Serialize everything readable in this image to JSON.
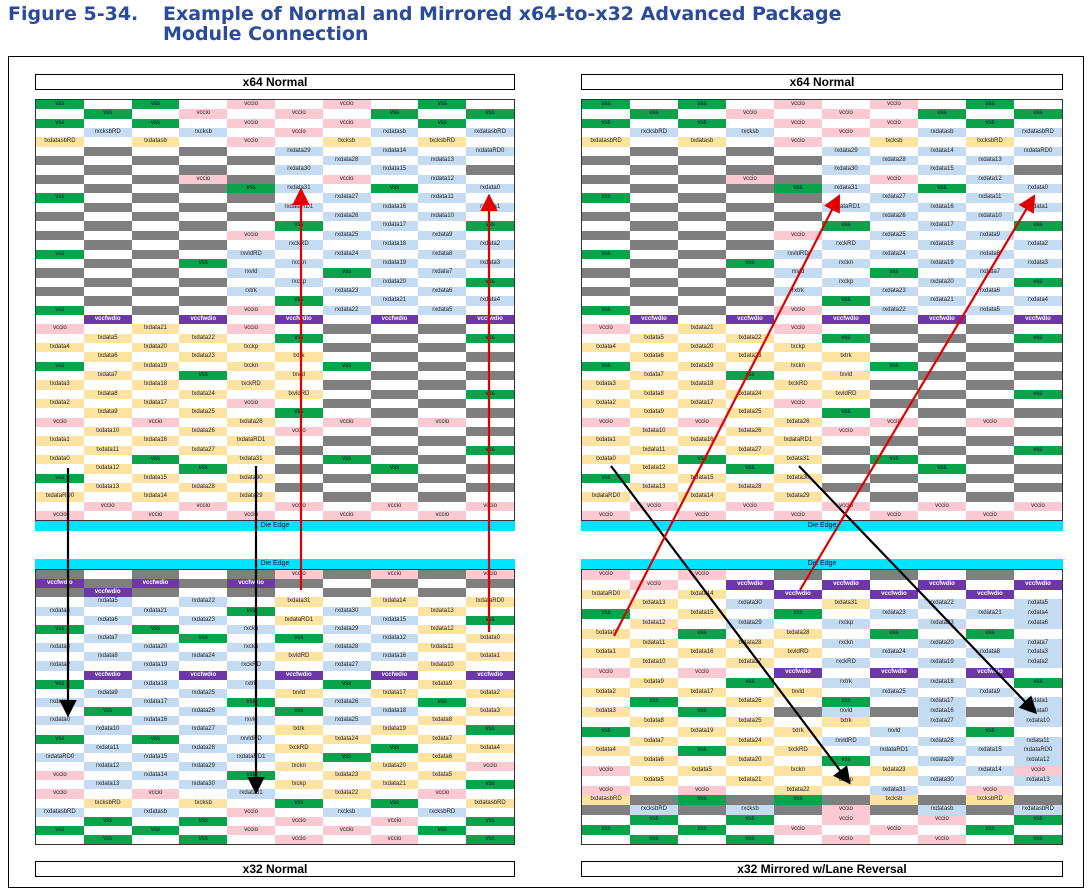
{
  "figure": {
    "number": "Figure 5-34.",
    "title": "Example of Normal and Mirrored x64-to-x32 Advanced Package Module Connection"
  },
  "labels": {
    "top_left": "x64 Normal",
    "top_right": "x64 Normal",
    "bottom_left": "x32 Normal",
    "bottom_right": "x32 Mirrored w/Lane Reversal",
    "die_edge": "Die Edge"
  },
  "colors": {
    "vss": "#0aa24a",
    "vccio": "#fbc9d1",
    "rx": "#c5dbf1",
    "tx": "#fce3a2",
    "unused": "#7f7f7f",
    "vccfwdio": "#6c37a8",
    "die_edge": "#00e5ff",
    "arrow_normal": "#e00000",
    "arrow_mirrored": "#000000"
  },
  "x64_grid": [
    [
      "vss",
      "",
      "vss",
      "",
      "vccio",
      "",
      "vccio",
      "",
      "vss",
      ""
    ],
    [
      "",
      "vss",
      "",
      "vccio",
      "",
      "vccio",
      "",
      "vss",
      "",
      "vss"
    ],
    [
      "vss",
      "",
      "vss",
      "",
      "vccio",
      "",
      "vccio",
      "",
      "vss",
      ""
    ],
    [
      "",
      "rxcksbRD",
      "",
      "rxcksb",
      "",
      "vccio",
      "",
      "rxdatasb",
      "",
      "rxdatasbRD"
    ],
    [
      "txdatasbRD",
      "",
      "txdatasb",
      "",
      "vccio",
      "",
      "txcksb",
      "",
      "txcksbRD",
      ""
    ],
    [
      "",
      "",
      "",
      "",
      "",
      "rxdata29",
      "",
      "rxdata14",
      "",
      "rxdataRD0"
    ],
    [
      "",
      "",
      "",
      "",
      "",
      "",
      "rxdata28",
      "",
      "rxdata13",
      ""
    ],
    [
      "",
      "",
      "",
      "",
      "",
      "rxdata30",
      "",
      "rxdata15",
      "",
      ""
    ],
    [
      "",
      "",
      "",
      "vccio",
      "",
      "",
      "vccio",
      "",
      "rxdata12",
      ""
    ],
    [
      "",
      "",
      "",
      "",
      "vss",
      "rxdata31",
      "",
      "vss",
      "",
      "rxdata0"
    ],
    [
      "vss",
      "",
      "",
      "",
      "",
      "",
      "rxdata27",
      "",
      "rxdata11",
      ""
    ],
    [
      "",
      "",
      "",
      "",
      "",
      "rxdataRD1",
      "",
      "rxdata16",
      "",
      "rxdata1"
    ],
    [
      "",
      "",
      "",
      "",
      "",
      "",
      "rxdata26",
      "",
      "rxdata10",
      ""
    ],
    [
      "",
      "",
      "",
      "",
      "",
      "vss",
      "",
      "rxdata17",
      "",
      "vss"
    ],
    [
      "",
      "",
      "",
      "",
      "vccio",
      "",
      "rxdata25",
      "",
      "rxdata9",
      ""
    ],
    [
      "",
      "",
      "",
      "",
      "",
      "rxckRD",
      "",
      "rxdata18",
      "",
      "rxdata2"
    ],
    [
      "vss",
      "",
      "",
      "",
      "rxvldRD",
      "",
      "rxdata24",
      "",
      "rxdata8",
      ""
    ],
    [
      "",
      "",
      "",
      "vss",
      "",
      "rxckn",
      "",
      "rxdata19",
      "",
      "rxdata3"
    ],
    [
      "",
      "",
      "",
      "",
      "rxvld",
      "",
      "vss",
      "",
      "rxdata7",
      ""
    ],
    [
      "",
      "",
      "",
      "",
      "",
      "rxckp",
      "",
      "rxdata20",
      "",
      "vss"
    ],
    [
      "",
      "",
      "",
      "",
      "rxtrk",
      "",
      "rxdata23",
      "",
      "rxdata6",
      ""
    ],
    [
      "",
      "",
      "",
      "",
      "",
      "vss",
      "",
      "rxdata21",
      "",
      "rxdata4"
    ],
    [
      "vss",
      "",
      "",
      "",
      "vccio",
      "",
      "rxdata22",
      "",
      "rxdata5",
      ""
    ],
    [
      "",
      "vccfwdio",
      "",
      "vccfwdio",
      "",
      "vccfwdio",
      "",
      "vccfwdio",
      "",
      "vccfwdio"
    ],
    [
      "vccio",
      "",
      "txdata21",
      "",
      "vccio",
      "",
      "",
      "",
      "",
      ""
    ],
    [
      "",
      "txdata5",
      "",
      "txdata22",
      "",
      "vss",
      "",
      "",
      "",
      "vss"
    ],
    [
      "txdata4",
      "",
      "txdata20",
      "",
      "txckp",
      "",
      "",
      "",
      "",
      ""
    ],
    [
      "",
      "txdata6",
      "",
      "txdata23",
      "",
      "txtrk",
      "",
      "",
      "",
      ""
    ],
    [
      "vss",
      "",
      "txdata19",
      "",
      "txckn",
      "",
      "vss",
      "",
      "",
      ""
    ],
    [
      "",
      "txdata7",
      "",
      "vss",
      "",
      "txvld",
      "",
      "",
      "",
      ""
    ],
    [
      "txdata3",
      "",
      "txdata18",
      "",
      "txckRD",
      "",
      "",
      "",
      "",
      ""
    ],
    [
      "",
      "txdata8",
      "",
      "txdata24",
      "",
      "txvldRD",
      "",
      "",
      "",
      "vss"
    ],
    [
      "txdata2",
      "",
      "txdata17",
      "",
      "vccio",
      "",
      "",
      "",
      "",
      ""
    ],
    [
      "",
      "txdata9",
      "",
      "txdata25",
      "",
      "vss",
      "",
      "",
      "",
      ""
    ],
    [
      "vccio",
      "",
      "vccio",
      "",
      "txdata26",
      "",
      "vccio",
      "",
      "vccio",
      ""
    ],
    [
      "",
      "txdata10",
      "",
      "txdata26",
      "",
      "vccio",
      "",
      "",
      "",
      ""
    ],
    [
      "txdata1",
      "",
      "txdata16",
      "",
      "txdataRD1",
      "",
      "",
      "",
      "",
      ""
    ],
    [
      "",
      "txdata11",
      "",
      "txdata27",
      "",
      "",
      "",
      "",
      "",
      "vss"
    ],
    [
      "txdata0",
      "",
      "vss",
      "",
      "txdata31",
      "",
      "vss",
      "",
      "",
      ""
    ],
    [
      "",
      "txdata12",
      "",
      "vss",
      "",
      "",
      "",
      "vss",
      "",
      ""
    ],
    [
      "vss",
      "",
      "txdata15",
      "",
      "txdata30",
      "",
      "",
      "",
      "",
      ""
    ],
    [
      "",
      "txdata13",
      "",
      "txdata28",
      "",
      "",
      "",
      "",
      "",
      ""
    ],
    [
      "txdataRD0",
      "",
      "txdata14",
      "",
      "txdata29",
      "",
      "",
      "",
      "",
      ""
    ],
    [
      "",
      "vccio",
      "",
      "vccio",
      "",
      "vccio",
      "",
      "vccio",
      "",
      "vccio"
    ],
    [
      "vccio",
      "",
      "vccio",
      "",
      "vccio",
      "",
      "vccio",
      "",
      "vccio",
      ""
    ]
  ],
  "x32_grid": [
    [
      "",
      "",
      "",
      "",
      "",
      "vccio",
      "",
      "vccio",
      "",
      "vccio"
    ],
    [
      "vccfwdio",
      "",
      "vccfwdio",
      "",
      "vccfwdio",
      "",
      "",
      "",
      "",
      ""
    ],
    [
      "",
      "vccfwdio",
      "",
      "",
      "",
      "",
      "",
      "",
      "",
      ""
    ],
    [
      "",
      "rxdata5",
      "",
      "rxdata22",
      "",
      "txdata31",
      "",
      "txdata14",
      "",
      "txdataRD0"
    ],
    [
      "rxdata4",
      "",
      "rxdata21",
      "",
      "vss",
      "",
      "rxdata30",
      "",
      "txdata13",
      ""
    ],
    [
      "",
      "rxdata6",
      "",
      "rxdata23",
      "",
      "txdataRD1",
      "",
      "rxdata15",
      "",
      "vss"
    ],
    [
      "vss",
      "",
      "vss",
      "",
      "rxckn",
      "",
      "rxdata29",
      "",
      "txdata12",
      ""
    ],
    [
      "",
      "rxdata7",
      "",
      "vss",
      "",
      "vss",
      "",
      "rxdata12",
      "",
      "txdata0"
    ],
    [
      "rxdata3",
      "",
      "rxdata20",
      "",
      "rxckn",
      "",
      "rxdata28",
      "",
      "txdata11",
      ""
    ],
    [
      "",
      "rxdata8",
      "",
      "rxdata24",
      "",
      "txvldRD",
      "",
      "rxdata16",
      "",
      "txdata1"
    ],
    [
      "rxdata2",
      "",
      "rxdata19",
      "",
      "rxckRD",
      "",
      "rxdata27",
      "",
      "txdata10",
      ""
    ],
    [
      "",
      "vccfwdio",
      "",
      "vccfwdio",
      "",
      "vccfwdio",
      "",
      "vccfwdio",
      "",
      "vccfwdio"
    ],
    [
      "vss",
      "",
      "rxdata18",
      "",
      "rxtrk",
      "",
      "vss",
      "",
      "txdata9",
      ""
    ],
    [
      "",
      "rxdata9",
      "",
      "rxdata25",
      "",
      "txvld",
      "",
      "txdata17",
      "",
      "txdata2"
    ],
    [
      "rxdata1",
      "",
      "rxdata17",
      "",
      "vss",
      "",
      "rxdata26",
      "",
      "vss",
      ""
    ],
    [
      "",
      "vss",
      "",
      "rxdata26",
      "",
      "vss",
      "",
      "rxdata18",
      "",
      "txdata3"
    ],
    [
      "rxdata0",
      "",
      "rxdata16",
      "",
      "rxvld",
      "",
      "rxdata25",
      "",
      "txdata8",
      ""
    ],
    [
      "",
      "rxdata10",
      "",
      "rxdata27",
      "",
      "txtrk",
      "",
      "txdata19",
      "",
      "vss"
    ],
    [
      "vss",
      "",
      "vss",
      "",
      "rxvldRD",
      "",
      "txdata24",
      "",
      "txdata7",
      ""
    ],
    [
      "",
      "rxdata11",
      "",
      "rxdata28",
      "",
      "txckRD",
      "",
      "vss",
      "",
      "txdata4"
    ],
    [
      "rxdataRD0",
      "",
      "rxdata15",
      "",
      "rxdataRD1",
      "",
      "vss",
      "",
      "txdata6",
      ""
    ],
    [
      "",
      "rxdata12",
      "",
      "rxdata29",
      "",
      "txckn",
      "",
      "txdata20",
      "",
      "vccio"
    ],
    [
      "vccio",
      "",
      "rxdata14",
      "",
      "vss",
      "",
      "txdata23",
      "",
      "txdata5",
      ""
    ],
    [
      "",
      "rxdata13",
      "",
      "rxdata30",
      "",
      "txckp",
      "",
      "txdata21",
      "",
      "vss"
    ],
    [
      "vccio",
      "",
      "vccio",
      "",
      "rxdata31",
      "",
      "txdata22",
      "",
      "vccio",
      ""
    ],
    [
      "",
      "txcksbRD",
      "",
      "txcksb",
      "",
      "vss",
      "",
      "vss",
      "",
      "txdatasbRD"
    ],
    [
      "rxdatasbRD",
      "",
      "rxdatasb",
      "",
      "vccio",
      "",
      "rxcksb",
      "",
      "rxcksbRD",
      ""
    ],
    [
      "",
      "vss",
      "",
      "vss",
      "",
      "vccio",
      "",
      "vccio",
      "",
      "vss"
    ],
    [
      "vss",
      "",
      "vss",
      "",
      "vccio",
      "",
      "vccio",
      "",
      "vss",
      ""
    ],
    [
      "",
      "vss",
      "",
      "vss",
      "",
      "vccio",
      "",
      "vccio",
      "",
      "vss"
    ]
  ],
  "x32_mirrored_grid": [
    [
      "vccio",
      "",
      "vccio",
      "",
      "",
      "",
      "",
      "",
      "",
      ""
    ],
    [
      "",
      "vccio",
      "",
      "vccfwdio",
      "",
      "vccfwdio",
      "",
      "vccfwdio",
      "",
      "vccfwdio"
    ],
    [
      "txdataRD0",
      "",
      "txdata14",
      "",
      "vccfwdio",
      "",
      "vccfwdio",
      "",
      "vccfwdio",
      ""
    ],
    [
      "",
      "txdata13",
      "",
      "rxdata30",
      "",
      "txdata31",
      "",
      "rxdata22",
      "",
      "rxdata5"
    ],
    [
      "vss",
      "",
      "txdata15",
      "",
      "vss",
      "",
      "rxdata23",
      "",
      "rxdata21",
      "rxdata4"
    ],
    [
      "",
      "txdata12",
      "",
      "rxdata29",
      "",
      "rxckp",
      "",
      "rxdata23",
      "",
      "rxdata6"
    ],
    [
      "txdata0",
      "",
      "vss",
      "",
      "txdata28",
      "",
      "vss",
      "",
      "vss",
      ""
    ],
    [
      "",
      "txdata11",
      "",
      "txdata28",
      "",
      "rxckn",
      "",
      "rxdata20",
      "",
      "rxdata7"
    ],
    [
      "txdata1",
      "",
      "txdata16",
      "",
      "txvldRD",
      "",
      "rxdata24",
      "",
      "rxdata8",
      "rxdata3"
    ],
    [
      "",
      "txdata10",
      "",
      "txdata27",
      "",
      "rxckRD",
      "",
      "rxdata19",
      "",
      "rxdata2"
    ],
    [
      "vccio",
      "",
      "vccio",
      "",
      "vccfwdio",
      "",
      "vccfwdio",
      "",
      "vccfwdio",
      ""
    ],
    [
      "",
      "txdata9",
      "",
      "vss",
      "",
      "rxtrk",
      "",
      "rxdata18",
      "",
      "vss"
    ],
    [
      "txdata2",
      "",
      "txdata17",
      "",
      "txvld",
      "",
      "rxdata25",
      "",
      "rxdata9",
      ""
    ],
    [
      "",
      "vss",
      "",
      "txdata26",
      "",
      "vss",
      "",
      "rxdata17",
      "",
      "rxdata1"
    ],
    [
      "txdata3",
      "",
      "vss",
      "",
      "",
      "rxvld",
      "",
      "rxdata16",
      "",
      "rxdata0"
    ],
    [
      "",
      "txdata8",
      "",
      "txdata25",
      "",
      "txtrk",
      "",
      "rxdata27",
      "",
      "rxdata10"
    ],
    [
      "vss",
      "",
      "txdata19",
      "",
      "txtrk",
      "",
      "rxvld",
      "",
      "vss",
      ""
    ],
    [
      "",
      "txdata7",
      "",
      "txdata24",
      "",
      "rxvldRD",
      "",
      "rxdata28",
      "",
      "rxdata11"
    ],
    [
      "txdata4",
      "",
      "vss",
      "",
      "txckRD",
      "",
      "rxdataRD1",
      "",
      "rxdata15",
      "rxdataRD0"
    ],
    [
      "",
      "txdata6",
      "",
      "txdata20",
      "",
      "vss",
      "",
      "rxdata29",
      "",
      "rxdata12"
    ],
    [
      "vccio",
      "",
      "txdata5",
      "",
      "txckn",
      "",
      "txdata23",
      "",
      "rxdata14",
      "vccio"
    ],
    [
      "",
      "txdata5",
      "",
      "txdata21",
      "",
      "txckp",
      "",
      "rxdata30",
      "",
      "rxdata13"
    ],
    [
      "vccio",
      "",
      "vccio",
      "",
      "txdata22",
      "",
      "rxdata31",
      "",
      "vccio",
      ""
    ],
    [
      "txdatasbRD",
      "",
      "vss",
      "",
      "vss",
      "",
      "txcksb",
      "",
      "txcksbRD",
      ""
    ],
    [
      "",
      "rxcksbRD",
      "",
      "rxcksb",
      "",
      "vccio",
      "",
      "rxdatasb",
      "",
      "rxdatasbRD"
    ],
    [
      "",
      "vss",
      "",
      "vss",
      "",
      "vccio",
      "",
      "vccio",
      "",
      "vss"
    ],
    [
      "vss",
      "",
      "vss",
      "",
      "vccio",
      "",
      "vccio",
      "",
      "vss",
      ""
    ],
    [
      "",
      "vss",
      "",
      "vss",
      "",
      "vccio",
      "",
      "vccio",
      "",
      "vss"
    ]
  ]
}
